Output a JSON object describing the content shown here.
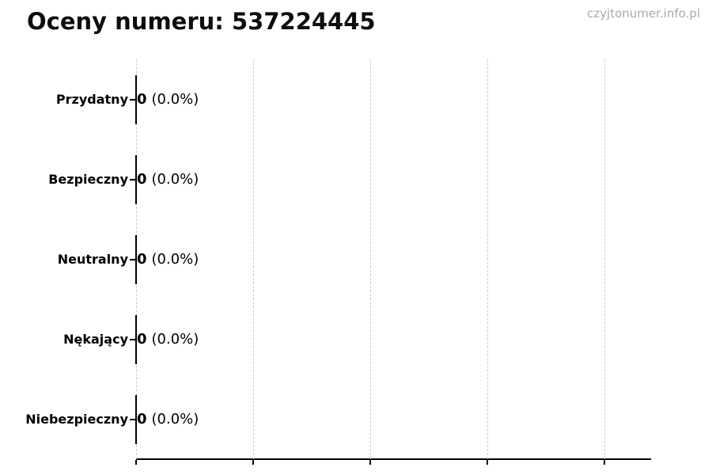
{
  "header": {
    "title": "Oceny numeru: 537224445",
    "watermark": "czyjtonumer.info.pl"
  },
  "chart_data": {
    "type": "bar",
    "orientation": "horizontal",
    "title": "Oceny numeru: 537224445",
    "categories": [
      "Przydatny",
      "Bezpieczny",
      "Neutralny",
      "Nękający",
      "Niebezpieczny"
    ],
    "values": [
      0,
      0,
      0,
      0,
      0
    ],
    "counts_display": [
      "0",
      "0",
      "0",
      "0",
      "0"
    ],
    "percents_display": [
      "(0.0%)",
      "(0.0%)",
      "(0.0%)",
      "(0.0%)",
      "(0.0%)"
    ],
    "xlabel": "",
    "ylabel": "",
    "xlim": [
      0,
      4.4
    ],
    "x_gridlines": [
      0,
      1,
      2,
      3,
      4
    ],
    "grid": "vertical-dashed",
    "legend": "none",
    "colors": {
      "bar_edge": "#000000",
      "axis": "#000000",
      "grid": "#cccccc",
      "text": "#000000",
      "watermark": "#aaaaaa",
      "background": "#ffffff"
    }
  }
}
